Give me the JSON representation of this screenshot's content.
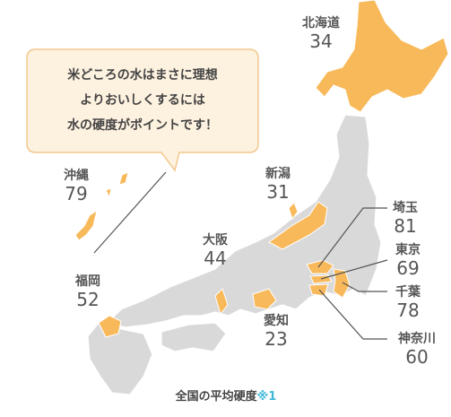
{
  "callout": {
    "lines": [
      "米どころの水はまさに理想",
      "よりおいしくするには",
      "水の硬度がポイントです！"
    ]
  },
  "regions": [
    {
      "name": "北海道",
      "value": 34
    },
    {
      "name": "沖縄",
      "value": 79
    },
    {
      "name": "新潟",
      "value": 31
    },
    {
      "name": "埼玉",
      "value": 81
    },
    {
      "name": "大阪",
      "value": 44
    },
    {
      "name": "東京",
      "value": 69
    },
    {
      "name": "福岡",
      "value": 52
    },
    {
      "name": "千葉",
      "value": 78
    },
    {
      "name": "愛知",
      "value": 23
    },
    {
      "name": "神奈川",
      "value": 60
    }
  ],
  "footer": {
    "text": "全国の平均硬度",
    "note": "※1"
  }
}
